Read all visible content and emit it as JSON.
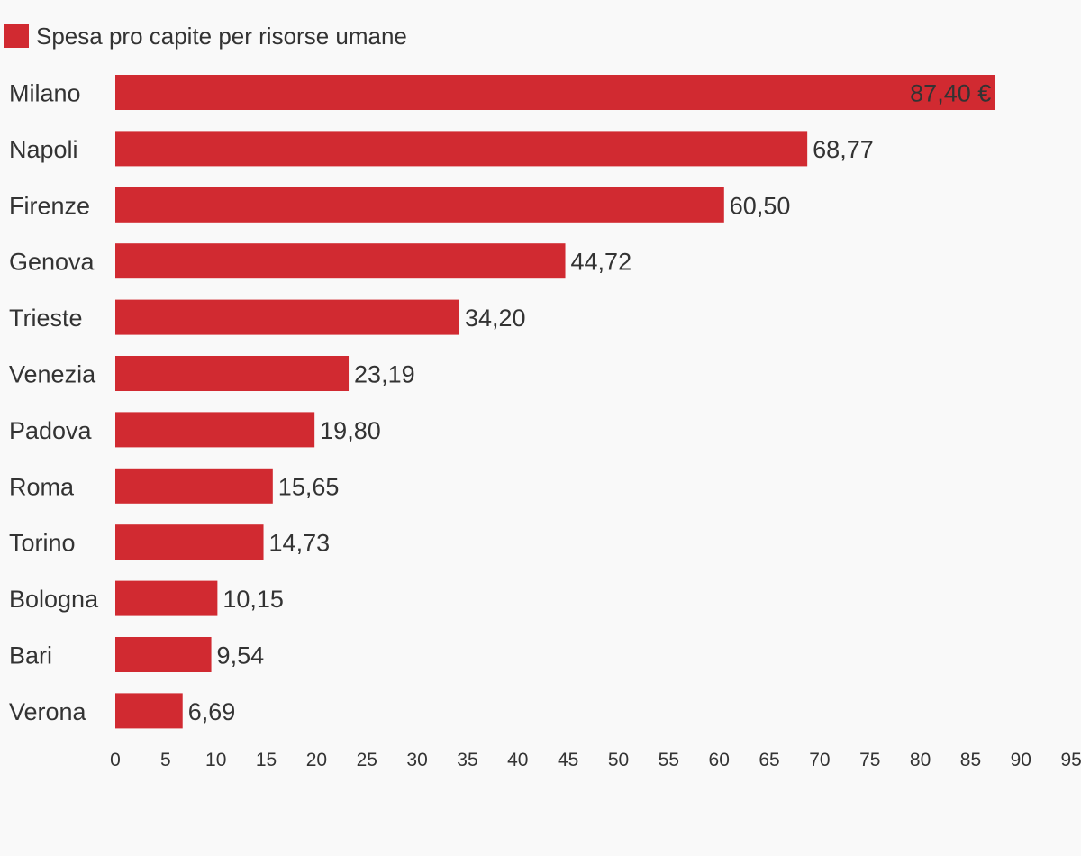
{
  "chart_data": {
    "type": "bar",
    "orientation": "horizontal",
    "legend_position": "top-left",
    "grid": false,
    "categories": [
      "Milano",
      "Napoli",
      "Firenze",
      "Genova",
      "Trieste",
      "Venezia",
      "Padova",
      "Roma",
      "Torino",
      "Bologna",
      "Bari",
      "Verona"
    ],
    "series": [
      {
        "name": "Spesa pro capite per risorse umane",
        "color": "#d12a31",
        "values": [
          87.4,
          68.77,
          60.5,
          44.72,
          34.2,
          23.19,
          19.8,
          15.65,
          14.73,
          10.15,
          9.54,
          6.69
        ],
        "labels": [
          "87,40 €",
          "68,77",
          "60,50",
          "44,72",
          "34,20",
          "23,19",
          "19,80",
          "15,65",
          "14,73",
          "10,15",
          "9,54",
          "6,69"
        ]
      }
    ],
    "xlim": [
      0,
      95
    ],
    "x_ticks": [
      "0",
      "5",
      "10",
      "15",
      "20",
      "25",
      "30",
      "35",
      "40",
      "45",
      "50",
      "55",
      "60",
      "65",
      "70",
      "75",
      "80",
      "85",
      "90",
      "95"
    ]
  }
}
